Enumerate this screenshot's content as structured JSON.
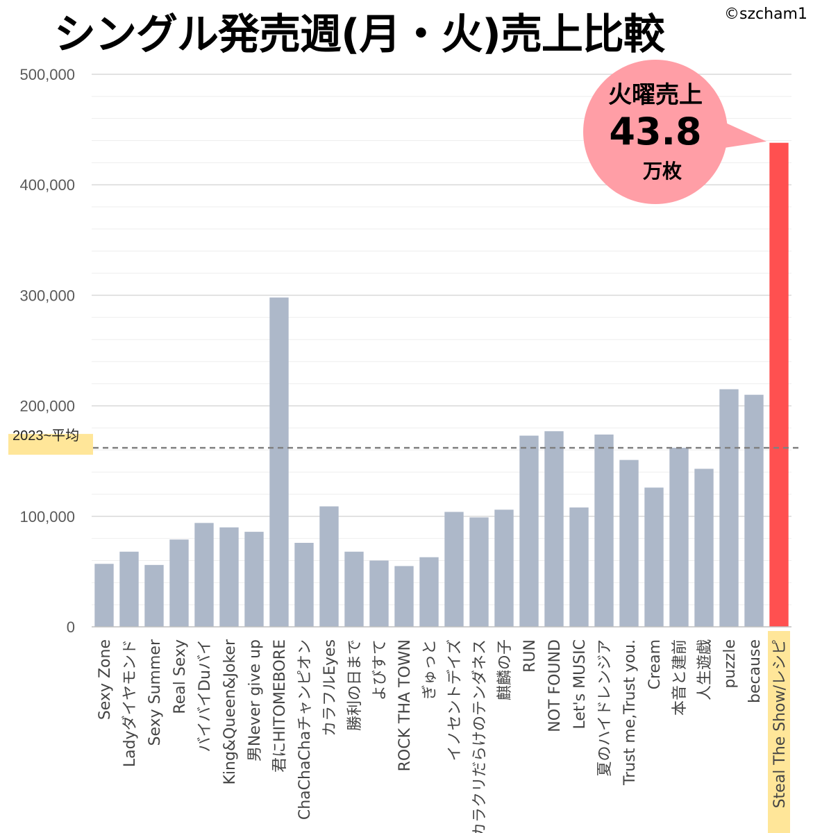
{
  "title": "シングル発売週(月・火)売上比較",
  "credit": "©szcham1",
  "colors": {
    "bar": "#adb8c9",
    "highlight_bar": "#ff5050",
    "bubble_fill": "#ff9ea6",
    "average_band": "#ffe699",
    "average_line": "#808080",
    "grid": "#d9d9d9"
  },
  "callout": {
    "line1": "火曜売上",
    "line2": "43.8",
    "line3": "万枚"
  },
  "chart_data": {
    "type": "bar",
    "title": "シングル発売週(月・火)売上比較",
    "xlabel": "",
    "ylabel": "",
    "ylim": [
      0,
      500000
    ],
    "y_ticks": [
      0,
      100000,
      200000,
      300000,
      400000,
      500000
    ],
    "y_tick_labels": [
      "0",
      "100,000",
      "200,000",
      "300,000",
      "400,000",
      "500,000"
    ],
    "grid": true,
    "categories": [
      "Sexy Zone",
      "Ladyダイヤモンド",
      "Sexy Summer",
      "Real Sexy",
      "バイバイDuバイ",
      "King&Queen&Joker",
      "男Never give up",
      "君にHITOMEBORE",
      "ChaChaChaチャンピオン",
      "カラフルEyes",
      "勝利の日まで",
      "よびすて",
      "ROCK THA TOWN",
      "ぎゅっと",
      "イノセントデイズ",
      "カラクリだらけのテンダネス",
      "麒麟の子",
      "RUN",
      "NOT FOUND",
      "Let's MUSIC",
      "夏のハイドレンジア",
      "Trust me,Trust you.",
      "Cream",
      "本音と建前",
      "人生遊戯",
      "puzzle",
      "because",
      "Steal The Show/レシピ"
    ],
    "values": [
      57000,
      68000,
      56000,
      79000,
      94000,
      90000,
      86000,
      298000,
      76000,
      109000,
      68000,
      60000,
      55000,
      63000,
      104000,
      99000,
      106000,
      173000,
      177000,
      108000,
      174000,
      151000,
      126000,
      162000,
      143000,
      215000,
      210000,
      438000
    ],
    "highlight_index": 27,
    "reference_line": {
      "label": "2023~平均",
      "value": 162000
    }
  }
}
